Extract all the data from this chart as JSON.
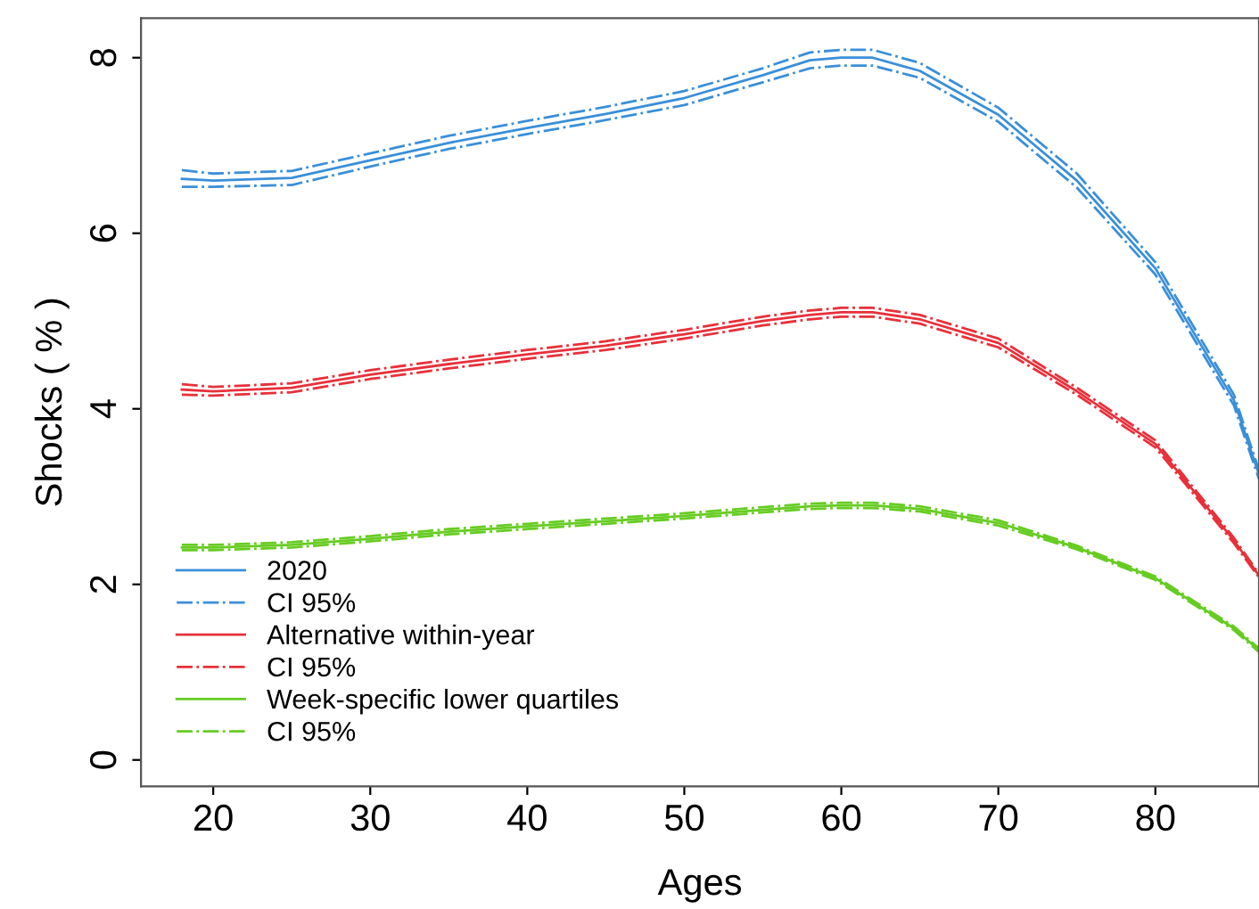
{
  "chart_data": {
    "type": "line",
    "xlabel": "Ages",
    "ylabel": "Shocks ( % )",
    "xlim": [
      15.4,
      86.6
    ],
    "ylim": [
      -0.3,
      8.45
    ],
    "xticks": [
      20,
      30,
      40,
      50,
      60,
      70,
      80
    ],
    "yticks": [
      0,
      2,
      4,
      6,
      8
    ],
    "grid": false,
    "legend": "bottom left",
    "marker": "none",
    "x": [
      18,
      20,
      25,
      30,
      35,
      40,
      45,
      50,
      55,
      58,
      60,
      62,
      65,
      70,
      75,
      80,
      85,
      86.6
    ],
    "series": [
      {
        "name": "2020",
        "color": "#3a8fd9",
        "line_style": "solid",
        "values": [
          6.62,
          6.6,
          6.63,
          6.83,
          7.03,
          7.2,
          7.36,
          7.54,
          7.8,
          7.97,
          8.0,
          8.0,
          7.85,
          7.35,
          6.6,
          5.6,
          4.1,
          3.25
        ]
      },
      {
        "name": "CI 95%",
        "color": "#3a8fd9",
        "line_style": "dashdot",
        "values": [
          6.53,
          6.53,
          6.55,
          6.76,
          6.96,
          7.13,
          7.29,
          7.46,
          7.72,
          7.88,
          7.91,
          7.91,
          7.77,
          7.27,
          6.52,
          5.53,
          4.04,
          3.2
        ]
      },
      {
        "color": "#3a8fd9",
        "line_style": "dashdot",
        "values": [
          6.72,
          6.68,
          6.71,
          6.91,
          7.11,
          7.28,
          7.44,
          7.62,
          7.88,
          8.06,
          8.09,
          8.09,
          7.94,
          7.43,
          6.68,
          5.67,
          4.16,
          3.3
        ]
      },
      {
        "name": "Alternative within-year",
        "color": "#e8303a",
        "line_style": "solid",
        "values": [
          4.22,
          4.2,
          4.24,
          4.39,
          4.51,
          4.62,
          4.72,
          4.85,
          5.0,
          5.07,
          5.1,
          5.1,
          5.02,
          4.75,
          4.2,
          3.6,
          2.5,
          2.1
        ]
      },
      {
        "name": "CI 95%",
        "color": "#e8303a",
        "line_style": "dashdot",
        "values": [
          4.16,
          4.15,
          4.19,
          4.34,
          4.46,
          4.57,
          4.67,
          4.8,
          4.95,
          5.02,
          5.05,
          5.05,
          4.97,
          4.7,
          4.16,
          3.56,
          2.47,
          2.08
        ]
      },
      {
        "color": "#e8303a",
        "line_style": "dashdot",
        "values": [
          4.28,
          4.25,
          4.29,
          4.44,
          4.56,
          4.67,
          4.77,
          4.9,
          5.05,
          5.12,
          5.15,
          5.15,
          5.07,
          4.8,
          4.24,
          3.64,
          2.53,
          2.12
        ]
      },
      {
        "name": "Week-specific lower quartiles",
        "color": "#66cc22",
        "line_style": "solid",
        "values": [
          2.42,
          2.42,
          2.45,
          2.52,
          2.6,
          2.66,
          2.72,
          2.78,
          2.85,
          2.89,
          2.9,
          2.9,
          2.86,
          2.7,
          2.42,
          2.07,
          1.5,
          1.25
        ]
      },
      {
        "name": "CI 95%",
        "color": "#66cc22",
        "line_style": "dashdot",
        "values": [
          2.39,
          2.39,
          2.42,
          2.49,
          2.57,
          2.63,
          2.69,
          2.75,
          2.82,
          2.86,
          2.87,
          2.87,
          2.83,
          2.67,
          2.4,
          2.05,
          1.48,
          1.23
        ]
      },
      {
        "color": "#66cc22",
        "line_style": "dashdot",
        "values": [
          2.45,
          2.45,
          2.48,
          2.55,
          2.63,
          2.69,
          2.75,
          2.81,
          2.88,
          2.92,
          2.93,
          2.93,
          2.89,
          2.73,
          2.44,
          2.09,
          1.52,
          1.27
        ]
      }
    ]
  }
}
